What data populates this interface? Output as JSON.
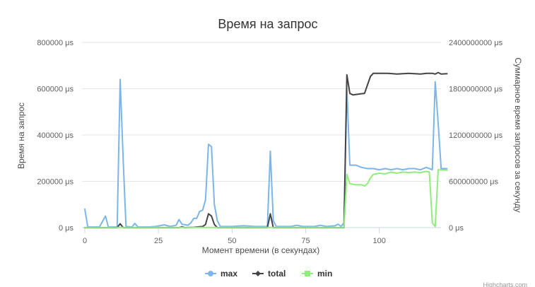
{
  "chart_data": {
    "type": "line",
    "title": "Время на запрос",
    "xlabel": "Момент времени (в секундах)",
    "ylabel": "Время на запрос",
    "y2label": "Суммарное время запросов за секунду",
    "xlim": [
      0,
      120
    ],
    "ylim": [
      0,
      800000
    ],
    "y2lim": [
      0,
      2400000000
    ],
    "x_ticks": [
      "0",
      "25",
      "50",
      "75",
      "100"
    ],
    "y_ticks": [
      "0 μs",
      "200000 μs",
      "400000 μs",
      "600000 μs",
      "800000 μs"
    ],
    "y2_ticks": [
      "0 μs",
      "600000000 μs",
      "1200000000 μs",
      "1800000000 μs",
      "2400000000 μs"
    ],
    "grid": true,
    "legend_position": "bottom",
    "credit": "Highcharts.com",
    "series": [
      {
        "name": "max",
        "color": "#7cb5ec",
        "axis": "left",
        "points": [
          [
            0,
            80000
          ],
          [
            1,
            3000
          ],
          [
            5,
            3000
          ],
          [
            7,
            50000
          ],
          [
            8,
            3000
          ],
          [
            11,
            3000
          ],
          [
            12,
            640000
          ],
          [
            13,
            300000
          ],
          [
            14,
            5000
          ],
          [
            16,
            3000
          ],
          [
            17,
            18000
          ],
          [
            18,
            3000
          ],
          [
            22,
            3000
          ],
          [
            24,
            5000
          ],
          [
            27,
            12000
          ],
          [
            29,
            5000
          ],
          [
            31,
            10000
          ],
          [
            32,
            35000
          ],
          [
            33,
            15000
          ],
          [
            35,
            10000
          ],
          [
            36,
            20000
          ],
          [
            37,
            40000
          ],
          [
            38,
            40000
          ],
          [
            39,
            70000
          ],
          [
            40,
            75000
          ],
          [
            41,
            120000
          ],
          [
            42,
            360000
          ],
          [
            43,
            350000
          ],
          [
            44,
            100000
          ],
          [
            45,
            30000
          ],
          [
            46,
            5000
          ],
          [
            50,
            5000
          ],
          [
            54,
            8000
          ],
          [
            58,
            5000
          ],
          [
            62,
            5000
          ],
          [
            63,
            330000
          ],
          [
            64,
            30000
          ],
          [
            65,
            5000
          ],
          [
            70,
            5000
          ],
          [
            72,
            10000
          ],
          [
            74,
            5000
          ],
          [
            78,
            5000
          ],
          [
            80,
            10000
          ],
          [
            82,
            5000
          ],
          [
            85,
            8000
          ],
          [
            86,
            15000
          ],
          [
            87,
            5000
          ],
          [
            88,
            20000
          ],
          [
            89,
            600000
          ],
          [
            90,
            270000
          ],
          [
            92,
            270000
          ],
          [
            94,
            260000
          ],
          [
            96,
            255000
          ],
          [
            98,
            255000
          ],
          [
            100,
            250000
          ],
          [
            102,
            255000
          ],
          [
            104,
            250000
          ],
          [
            106,
            255000
          ],
          [
            108,
            250000
          ],
          [
            110,
            255000
          ],
          [
            112,
            255000
          ],
          [
            114,
            250000
          ],
          [
            116,
            260000
          ],
          [
            118,
            250000
          ],
          [
            119,
            630000
          ],
          [
            120,
            450000
          ],
          [
            121,
            255000
          ],
          [
            123,
            255000
          ]
        ]
      },
      {
        "name": "total",
        "color": "#434348",
        "axis": "right",
        "points": [
          [
            0,
            0
          ],
          [
            11,
            0
          ],
          [
            12,
            50000000
          ],
          [
            13,
            0
          ],
          [
            32,
            0
          ],
          [
            33,
            12000000
          ],
          [
            34,
            0
          ],
          [
            37,
            5000000
          ],
          [
            40,
            15000000
          ],
          [
            41,
            40000000
          ],
          [
            42,
            180000000
          ],
          [
            43,
            150000000
          ],
          [
            44,
            40000000
          ],
          [
            45,
            0
          ],
          [
            62,
            0
          ],
          [
            63,
            180000000
          ],
          [
            64,
            0
          ],
          [
            88,
            0
          ],
          [
            89,
            1980000000
          ],
          [
            90,
            1740000000
          ],
          [
            91,
            1720000000
          ],
          [
            93,
            1730000000
          ],
          [
            95,
            1740000000
          ],
          [
            96,
            1850000000
          ],
          [
            97,
            1960000000
          ],
          [
            98,
            2000000000
          ],
          [
            100,
            2000000000
          ],
          [
            103,
            2000000000
          ],
          [
            106,
            1990000000
          ],
          [
            110,
            2000000000
          ],
          [
            114,
            1990000000
          ],
          [
            116,
            2000000000
          ],
          [
            118,
            2000000000
          ],
          [
            119,
            1990000000
          ],
          [
            120,
            2010000000
          ],
          [
            121,
            1990000000
          ],
          [
            123,
            1995000000
          ]
        ]
      },
      {
        "name": "min",
        "color": "#90ed7d",
        "axis": "left",
        "points": [
          [
            0,
            1000
          ],
          [
            88,
            1000
          ],
          [
            89,
            230000
          ],
          [
            90,
            190000
          ],
          [
            92,
            185000
          ],
          [
            94,
            185000
          ],
          [
            95,
            180000
          ],
          [
            96,
            190000
          ],
          [
            97,
            215000
          ],
          [
            98,
            230000
          ],
          [
            100,
            235000
          ],
          [
            102,
            232000
          ],
          [
            104,
            240000
          ],
          [
            106,
            235000
          ],
          [
            108,
            240000
          ],
          [
            110,
            238000
          ],
          [
            112,
            240000
          ],
          [
            114,
            238000
          ],
          [
            116,
            243000
          ],
          [
            117,
            240000
          ],
          [
            118,
            20000
          ],
          [
            119,
            5000
          ],
          [
            120,
            250000
          ],
          [
            123,
            248000
          ]
        ]
      }
    ]
  }
}
